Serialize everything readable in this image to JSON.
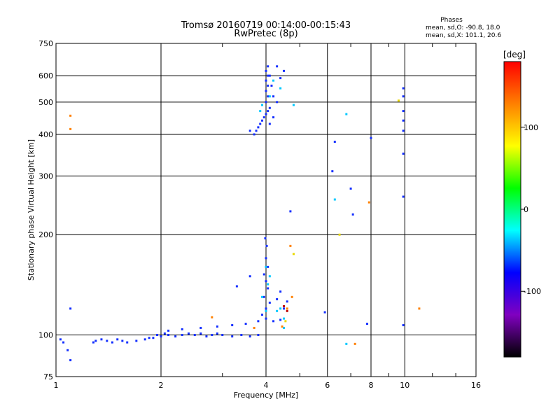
{
  "chart_data": {
    "type": "scatter",
    "title": "Tromsø 20160719 00:14:00-00:15:43",
    "subtitle": "RwPretec (8p)",
    "xlabel": "Frequency [MHz]",
    "ylabel": "Stationary phase Virtual Height [km]",
    "x_scale": "log",
    "y_scale": "log",
    "xlim": [
      1,
      16
    ],
    "ylim": [
      75,
      750
    ],
    "x_ticks": [
      1,
      2,
      4,
      6,
      8,
      10,
      16
    ],
    "y_ticks": [
      75,
      100,
      200,
      300,
      400,
      500,
      600,
      750
    ],
    "grid": true,
    "phase_info": {
      "heading": "Phases",
      "line1": "mean, sd,O: -90.8, 18.0",
      "line2": "mean, sd,X: 101.1, 20.6"
    },
    "colorbar": {
      "label": "[deg]",
      "range": [
        -180,
        180
      ],
      "ticks": [
        100,
        0,
        -100
      ],
      "colors": [
        "#ff0000",
        "#ff8000",
        "#ffff00",
        "#00ff00",
        "#00ffff",
        "#0000ff",
        "#8000c0",
        "#000000"
      ]
    },
    "series": [
      {
        "color": "#1530ff",
        "points": [
          [
            1.03,
            97
          ],
          [
            1.05,
            95
          ],
          [
            1.08,
            90
          ],
          [
            1.1,
            84
          ],
          [
            1.28,
            95
          ],
          [
            1.3,
            96
          ],
          [
            1.35,
            97
          ],
          [
            1.4,
            96
          ],
          [
            1.45,
            95
          ],
          [
            1.5,
            97
          ],
          [
            1.55,
            96
          ],
          [
            1.6,
            95
          ],
          [
            1.7,
            96
          ],
          [
            1.8,
            97
          ],
          [
            1.85,
            98
          ],
          [
            1.9,
            98
          ],
          [
            1.95,
            100
          ],
          [
            2.0,
            99
          ],
          [
            2.05,
            101
          ],
          [
            2.1,
            100
          ],
          [
            2.2,
            99
          ],
          [
            2.3,
            100
          ],
          [
            2.4,
            101
          ],
          [
            2.5,
            100
          ],
          [
            2.6,
            101
          ],
          [
            2.7,
            99
          ],
          [
            2.8,
            100
          ],
          [
            2.9,
            101
          ],
          [
            3.0,
            100
          ],
          [
            3.2,
            99
          ],
          [
            3.4,
            100
          ],
          [
            3.6,
            99
          ],
          [
            3.8,
            100
          ],
          [
            2.1,
            103
          ],
          [
            2.3,
            104
          ],
          [
            2.6,
            105
          ],
          [
            2.9,
            106
          ],
          [
            3.2,
            107
          ],
          [
            3.5,
            108
          ],
          [
            3.8,
            110
          ],
          [
            4.0,
            112
          ],
          [
            4.2,
            110
          ],
          [
            4.4,
            111
          ],
          [
            3.9,
            115
          ],
          [
            4.0,
            120
          ],
          [
            4.1,
            125
          ],
          [
            3.95,
            130
          ],
          [
            4.05,
            138
          ],
          [
            4.0,
            145
          ],
          [
            3.95,
            152
          ],
          [
            4.05,
            160
          ],
          [
            4.0,
            170
          ],
          [
            4.02,
            185
          ],
          [
            3.98,
            195
          ],
          [
            3.6,
            150
          ],
          [
            3.3,
            140
          ],
          [
            4.4,
            135
          ],
          [
            4.3,
            128
          ],
          [
            4.6,
            126
          ],
          [
            4.5,
            120
          ],
          [
            1.1,
            120
          ],
          [
            5.9,
            117
          ],
          [
            3.75,
            410
          ],
          [
            3.8,
            420
          ],
          [
            3.85,
            430
          ],
          [
            3.9,
            440
          ],
          [
            3.95,
            450
          ],
          [
            4.0,
            460
          ],
          [
            4.05,
            470
          ],
          [
            4.1,
            480
          ],
          [
            4.0,
            500
          ],
          [
            4.05,
            520
          ],
          [
            4.0,
            540
          ],
          [
            4.05,
            560
          ],
          [
            4.0,
            580
          ],
          [
            4.05,
            600
          ],
          [
            4.0,
            620
          ],
          [
            4.05,
            640
          ],
          [
            4.1,
            600
          ],
          [
            4.15,
            560
          ],
          [
            4.2,
            520
          ],
          [
            3.7,
            400
          ],
          [
            3.6,
            410
          ],
          [
            4.3,
            640
          ],
          [
            4.4,
            590
          ],
          [
            4.5,
            620
          ],
          [
            4.1,
            430
          ],
          [
            4.2,
            450
          ],
          [
            4.3,
            500
          ],
          [
            6.3,
            380
          ],
          [
            6.2,
            310
          ],
          [
            7.0,
            275
          ],
          [
            7.1,
            230
          ],
          [
            8.0,
            390
          ],
          [
            9.9,
            550
          ],
          [
            9.9,
            520
          ],
          [
            9.9,
            470
          ],
          [
            9.9,
            440
          ],
          [
            9.9,
            410
          ],
          [
            9.9,
            350
          ],
          [
            9.9,
            260
          ],
          [
            9.9,
            107
          ],
          [
            7.8,
            108
          ],
          [
            4.7,
            235
          ]
        ]
      },
      {
        "color": "#00c8ff",
        "points": [
          [
            3.9,
            130
          ],
          [
            4.1,
            150
          ],
          [
            4.05,
            142
          ],
          [
            4.3,
            118
          ],
          [
            4.5,
            112
          ],
          [
            4.4,
            120
          ],
          [
            4.0,
            118
          ],
          [
            3.9,
            490
          ],
          [
            4.1,
            520
          ],
          [
            4.2,
            580
          ],
          [
            3.85,
            470
          ],
          [
            6.8,
            460
          ],
          [
            6.3,
            255
          ],
          [
            6.8,
            94
          ],
          [
            4.5,
            105
          ],
          [
            4.4,
            550
          ],
          [
            4.8,
            490
          ],
          [
            4.0,
            160
          ]
        ]
      },
      {
        "color": "#ff8000",
        "points": [
          [
            1.1,
            455
          ],
          [
            1.1,
            415
          ],
          [
            2.8,
            113
          ],
          [
            4.45,
            106
          ],
          [
            4.6,
            120
          ],
          [
            4.75,
            130
          ],
          [
            4.7,
            185
          ],
          [
            7.9,
            250
          ],
          [
            7.2,
            94
          ],
          [
            11.0,
            120
          ],
          [
            3.7,
            105
          ]
        ]
      },
      {
        "color": "#e8d800",
        "points": [
          [
            4.55,
            110
          ],
          [
            9.6,
            505
          ],
          [
            6.5,
            200
          ],
          [
            4.8,
            175
          ]
        ]
      },
      {
        "color": "#c00000",
        "points": [
          [
            4.5,
            122
          ],
          [
            4.6,
            118
          ]
        ]
      }
    ]
  }
}
